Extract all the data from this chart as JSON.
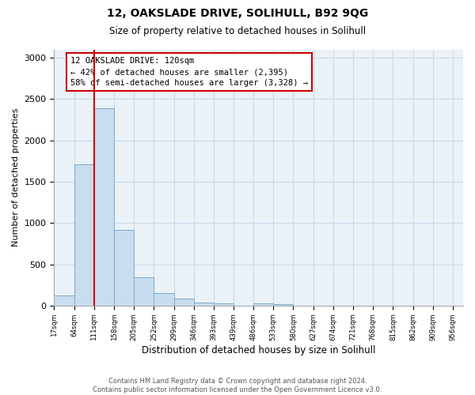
{
  "title": "12, OAKSLADE DRIVE, SOLIHULL, B92 9QG",
  "subtitle": "Size of property relative to detached houses in Solihull",
  "xlabel": "Distribution of detached houses by size in Solihull",
  "ylabel": "Number of detached properties",
  "bar_left_edges": [
    17,
    64,
    111,
    158,
    205,
    252,
    299,
    346,
    393,
    439,
    486,
    533
  ],
  "bar_heights": [
    120,
    1710,
    2390,
    920,
    340,
    155,
    80,
    35,
    25,
    0,
    25,
    20
  ],
  "bin_width": 47,
  "bar_color": "#c8ddef",
  "bar_edge_color": "#7aaac8",
  "vline_x": 111,
  "vline_color": "#cc0000",
  "annotation_title": "12 OAKSLADE DRIVE: 120sqm",
  "annotation_line1": "← 42% of detached houses are smaller (2,395)",
  "annotation_line2": "58% of semi-detached houses are larger (3,328) →",
  "ylim": [
    0,
    3100
  ],
  "xlim_left": 17,
  "xlim_right": 980,
  "xtick_labels": [
    "17sqm",
    "64sqm",
    "111sqm",
    "158sqm",
    "205sqm",
    "252sqm",
    "299sqm",
    "346sqm",
    "393sqm",
    "439sqm",
    "486sqm",
    "533sqm",
    "580sqm",
    "627sqm",
    "674sqm",
    "721sqm",
    "768sqm",
    "815sqm",
    "862sqm",
    "909sqm",
    "956sqm"
  ],
  "xtick_positions": [
    17,
    64,
    111,
    158,
    205,
    252,
    299,
    346,
    393,
    439,
    486,
    533,
    580,
    627,
    674,
    721,
    768,
    815,
    862,
    909,
    956
  ],
  "footer_line1": "Contains HM Land Registry data © Crown copyright and database right 2024.",
  "footer_line2": "Contains public sector information licensed under the Open Government Licence v3.0.",
  "bg_color": "#ffffff",
  "grid_color": "#c8d8e8",
  "plot_bg_color": "#eaf2f8"
}
